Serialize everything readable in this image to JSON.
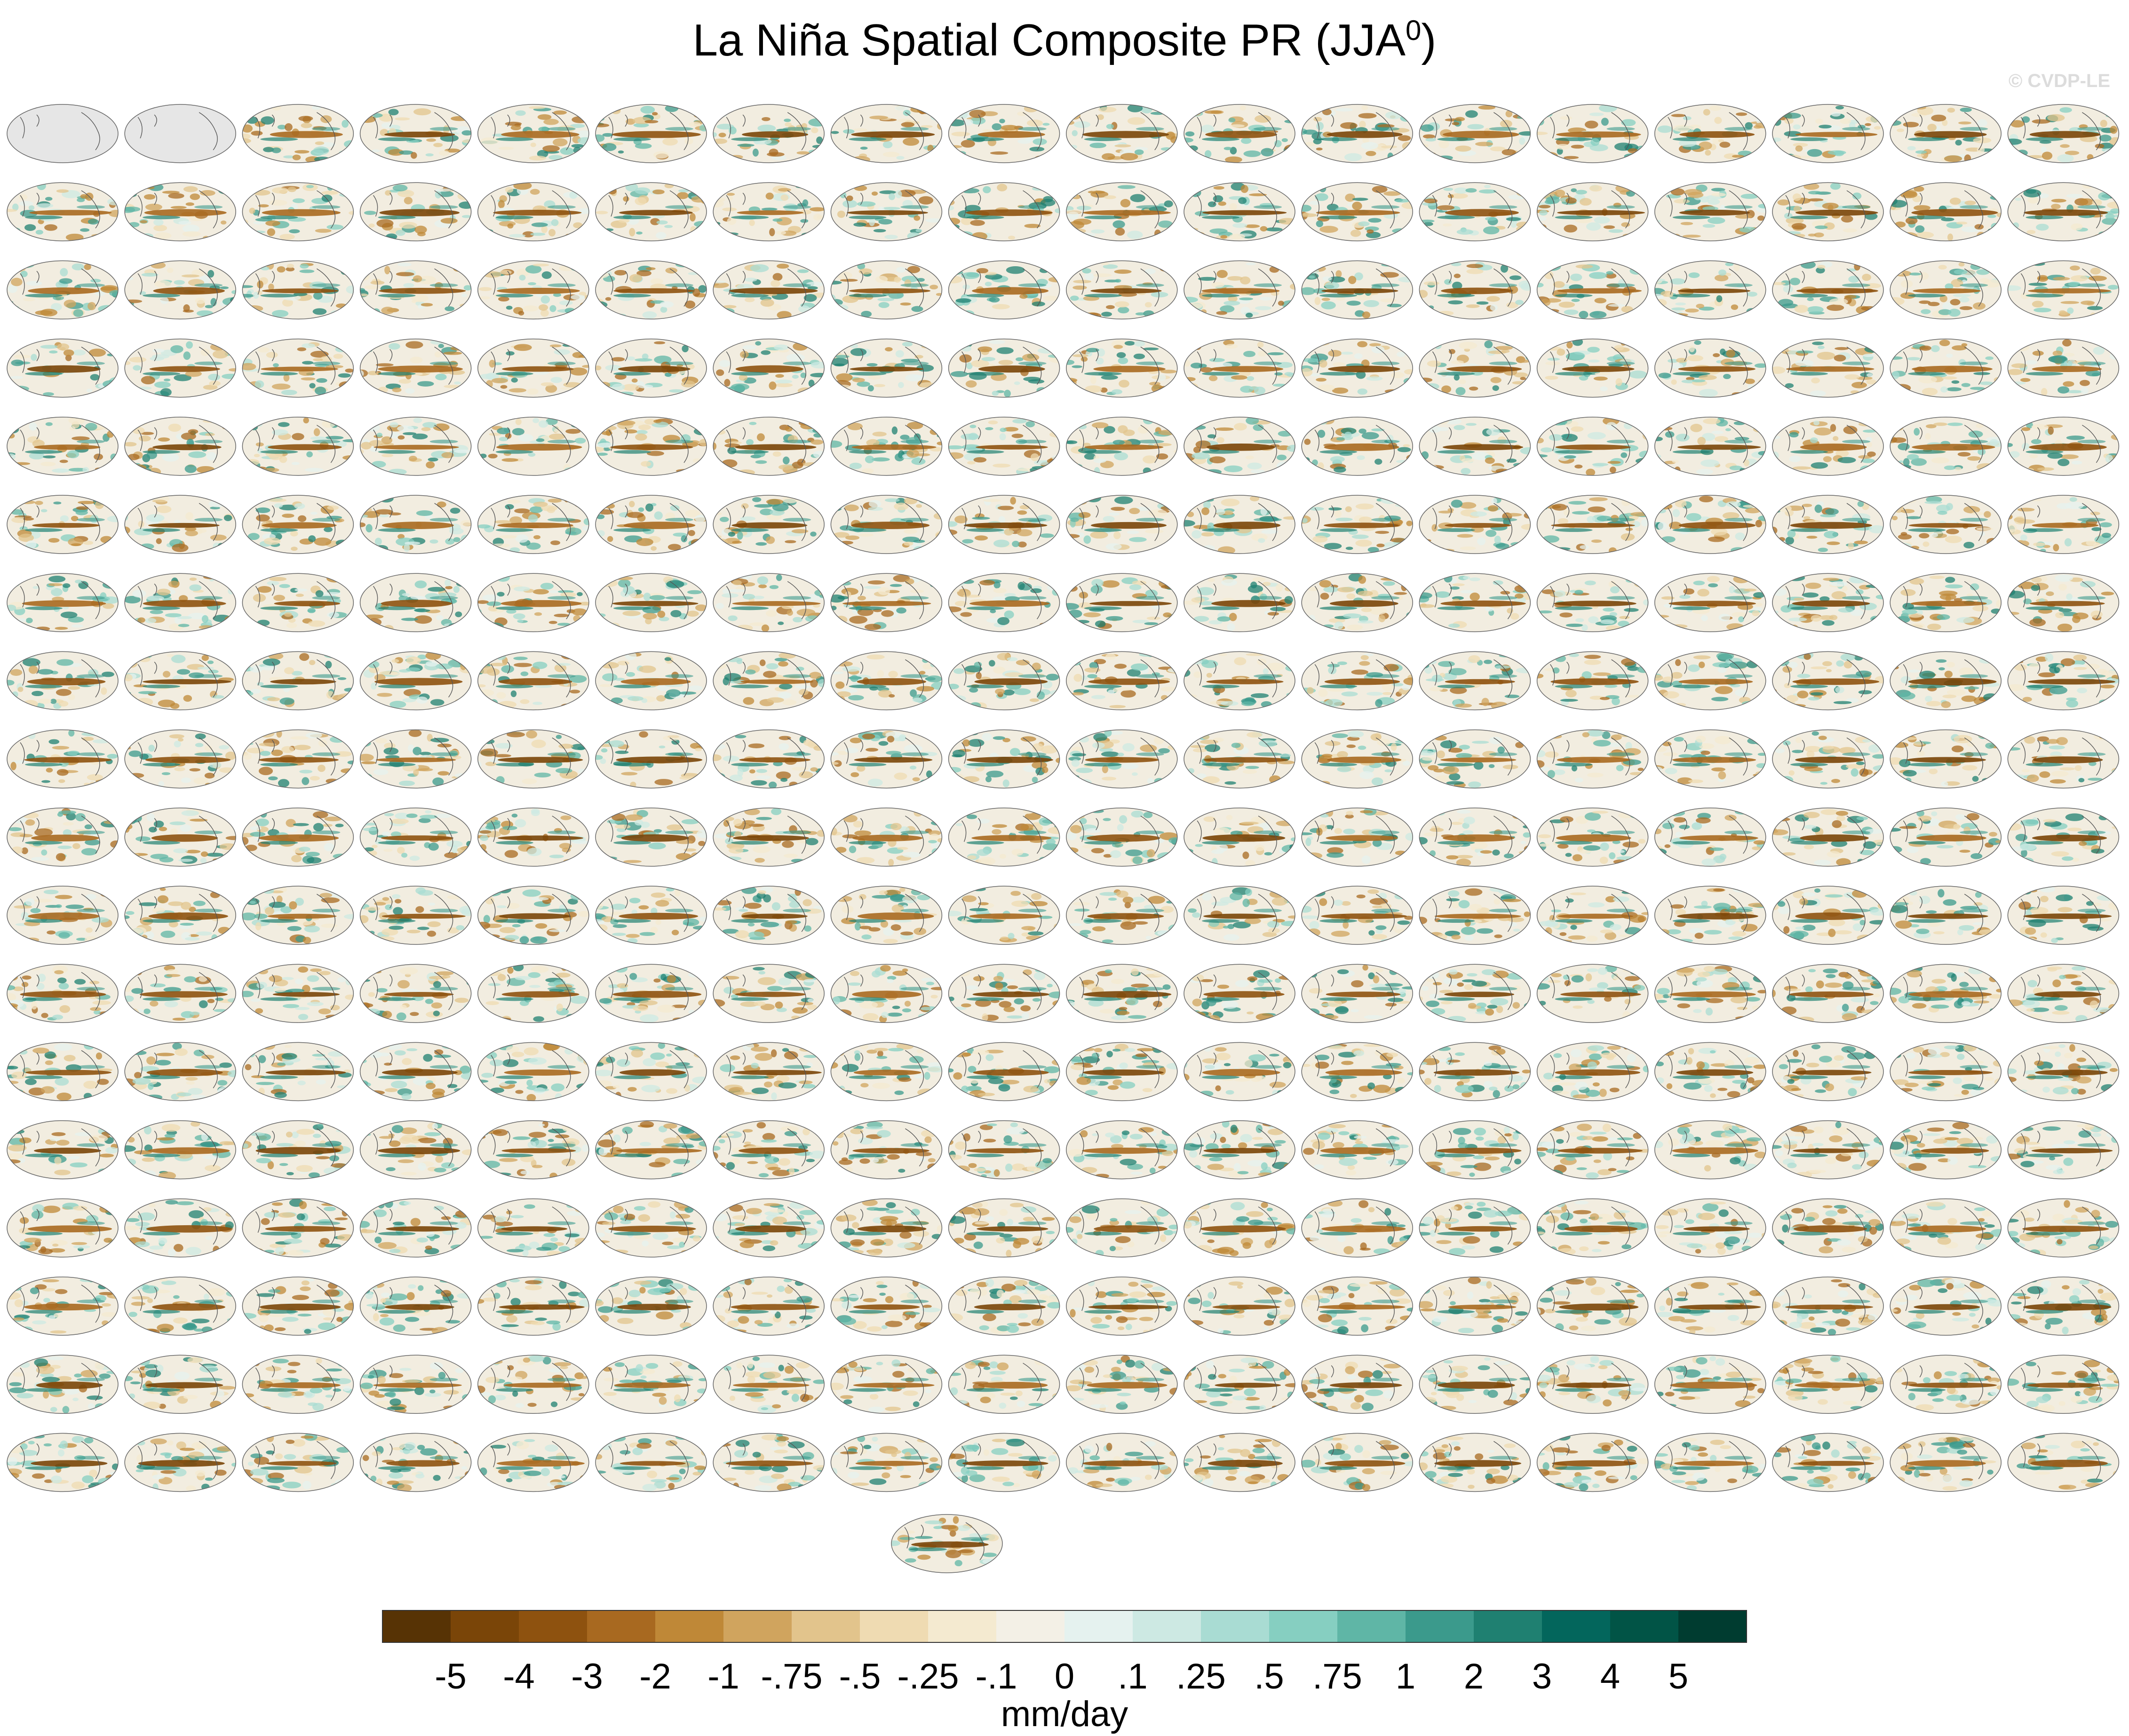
{
  "chart_data": {
    "type": "heatmap",
    "title": "La Niña Spatial Composite PR (JJA",
    "title_superscript": "0",
    "title_suffix": ")",
    "watermark": "© CVDP-LE",
    "panel_rows": 18,
    "panel_cols": 18,
    "panel_count": 325,
    "colorbar": {
      "units": "mm/day",
      "labels": [
        "-5",
        "-4",
        "-3",
        "-2",
        "-1",
        "-.75",
        "-.5",
        "-.25",
        "-.1",
        "0",
        ".1",
        ".25",
        ".5",
        ".75",
        "1",
        "2",
        "3",
        "4",
        "5"
      ],
      "colors": [
        "#573305",
        "#7a4508",
        "#8e520f",
        "#a86920",
        "#bf8837",
        "#d0a45e",
        "#e2c48c",
        "#efdbb2",
        "#f4ead0",
        "#f3f0e6",
        "#e5f2ef",
        "#cde9e3",
        "#a9dcd3",
        "#86cfc1",
        "#5fb6a6",
        "#3b9a8c",
        "#1f8071",
        "#03665c",
        "#015446",
        "#003c30"
      ]
    }
  }
}
